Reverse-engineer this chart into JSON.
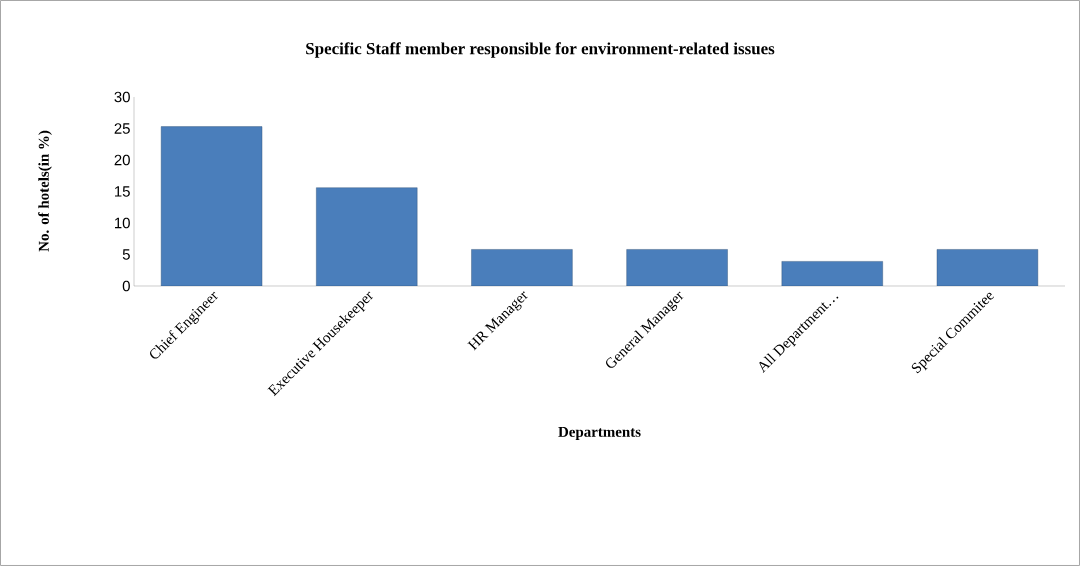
{
  "chart_data": {
    "type": "bar",
    "title": "Specific Staff member responsible for environment-related issues",
    "xlabel": "Departments",
    "ylabel": "No. of hotels(in %)",
    "categories": [
      "Chief Engineer",
      "Executive Housekeeper",
      "HR Manager",
      "General Manager",
      "All Department…",
      "Special Commitee"
    ],
    "values": [
      25.3,
      15.6,
      5.8,
      5.8,
      3.9,
      5.8
    ],
    "color": "#4a7ebb",
    "ylim": [
      0,
      30
    ],
    "yticks": [
      0,
      5,
      10,
      15,
      20,
      25,
      30
    ]
  }
}
